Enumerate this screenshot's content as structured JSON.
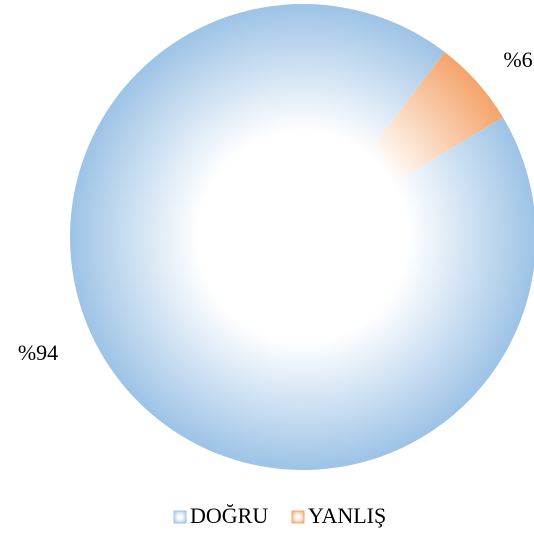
{
  "chart_data": {
    "type": "pie",
    "series": [
      {
        "name": "DOĞRU",
        "color": "#9dc3e6",
        "values": [
          94
        ],
        "value_labels": [
          "%94"
        ]
      },
      {
        "name": "YANLIŞ",
        "color": "#f4a46a",
        "values": [
          6
        ],
        "value_labels": [
          "%6"
        ]
      }
    ],
    "legend": "bottom"
  }
}
